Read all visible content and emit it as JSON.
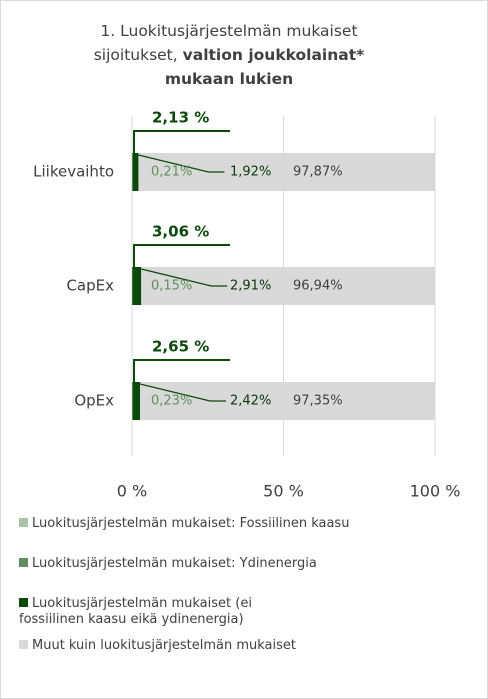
{
  "chart_data": {
    "type": "stacked_barh",
    "title": "1. Luokitusjärjestelmän mukaiset sijoitukset,",
    "title_bold": "valtion joukkolainat* mukaan lukien",
    "categories": [
      "Liikevaihto",
      "CapEx",
      "OpEx"
    ],
    "series": [
      {
        "name": "Luokitusjärjestelmän mukaiset: Fossiilinen kaasu",
        "color": "#a9c4a9",
        "values": [
          0,
          0,
          0
        ]
      },
      {
        "name": "Luokitusjärjestelmän mukaiset: Ydinenergia",
        "color": "#5f8f5f",
        "values": [
          0.21,
          0.15,
          0.23
        ],
        "value_labels": [
          "0,21%",
          "0,15%",
          "0,23%"
        ]
      },
      {
        "name": "Luokitusjärjestelmän mukaiset (ei fossiilinen kaasu eikä ydinenergia)",
        "color": "#0b4a0b",
        "values": [
          1.92,
          2.91,
          2.42
        ],
        "value_labels": [
          "1,92%",
          "2,91%",
          "2,42%"
        ]
      },
      {
        "name": "Muut kuin luokitusjärjestelmän mukaiset",
        "color": "#d9d9d9",
        "values": [
          97.87,
          96.94,
          97.35
        ],
        "value_labels": [
          "97,87%",
          "96,94%",
          "97,35%"
        ]
      }
    ],
    "annotations": [
      "2,13 %",
      "3,06 %",
      "2,65 %"
    ],
    "xlim": [
      0,
      100
    ],
    "xticks": [
      {
        "value": 0,
        "label": "0 %"
      },
      {
        "value": 50,
        "label": "50 %"
      },
      {
        "value": 100,
        "label": "100 %"
      }
    ],
    "grid": true
  }
}
